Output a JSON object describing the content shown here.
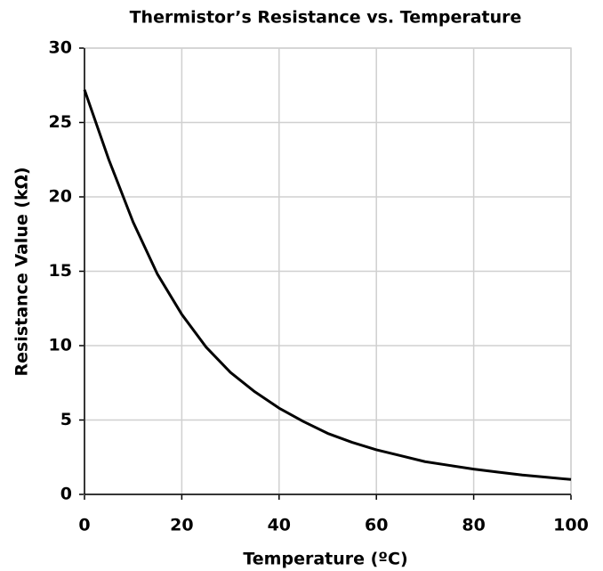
{
  "chart_data": {
    "type": "line",
    "title": "Thermistor’s Resistance vs. Temperature",
    "x_label": "Temperature (ºC)",
    "y_label": "Resistance Value (kΩ)",
    "x": [
      0,
      5,
      10,
      15,
      20,
      25,
      30,
      35,
      40,
      45,
      50,
      55,
      60,
      65,
      70,
      75,
      80,
      85,
      90,
      95,
      100
    ],
    "series": [
      {
        "name": "Resistance",
        "color": "#000000",
        "values": [
          27.2,
          22.5,
          18.3,
          14.8,
          12.1,
          9.9,
          8.2,
          6.9,
          5.8,
          4.9,
          4.1,
          3.5,
          3.0,
          2.6,
          2.2,
          1.95,
          1.7,
          1.5,
          1.3,
          1.15,
          1.0
        ]
      }
    ],
    "xlim": [
      0,
      100
    ],
    "xticks": [
      0,
      20,
      40,
      60,
      80,
      100
    ],
    "ylim": [
      0,
      30
    ],
    "yticks": [
      0,
      5,
      10,
      15,
      20,
      25,
      30
    ],
    "grid": true
  }
}
